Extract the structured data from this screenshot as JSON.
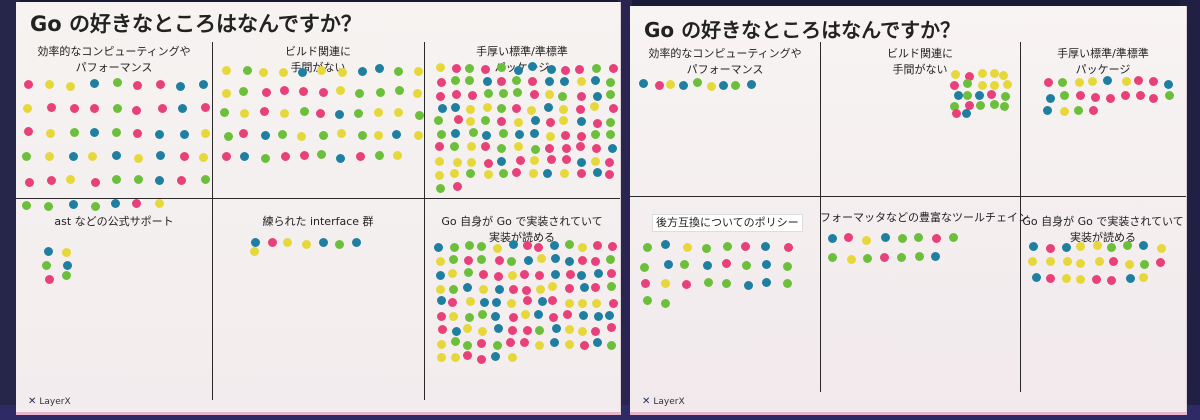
{
  "boards": [
    {
      "id": "board-left",
      "title": "Go の好きなところはなんですか？",
      "logo": "LayerX",
      "cells": [
        {
          "label": [
            "効率的なコンピューティングや",
            "パフォーマンス"
          ]
        },
        {
          "label": [
            "ビルド関連に",
            "手間がない"
          ]
        },
        {
          "label": [
            "手厚い標準/準標準",
            "パッケージ"
          ]
        },
        {
          "label": [
            "ast などの公式サポート"
          ]
        },
        {
          "label": [
            "練られた interface 群"
          ]
        },
        {
          "label": [
            "Go 自身が Go で実装されていて",
            "実装が読める"
          ]
        }
      ]
    },
    {
      "id": "board-right",
      "title": "Go の好きなところはなんですか？",
      "logo": "LayerX",
      "cells": [
        {
          "label": [
            "効率的なコンピューティングや",
            "パフォーマンス"
          ]
        },
        {
          "label": [
            "ビルド関連に",
            "手間がない"
          ]
        },
        {
          "label": [
            "手厚い標準/準標準",
            "パッケージ"
          ]
        },
        {
          "label": [
            "後方互換についてのポリシー"
          ]
        },
        {
          "label": [
            "フォーマッタなどの豊富なツールチェイン"
          ]
        },
        {
          "label": [
            "Go 自身が Go で実装されていて",
            "実装が読める"
          ]
        }
      ]
    }
  ],
  "sticker_colors": {
    "pink": "#e8407a",
    "green": "#6cbf3a",
    "yellow": "#e6d83a",
    "blue": "#1f7fa0"
  }
}
